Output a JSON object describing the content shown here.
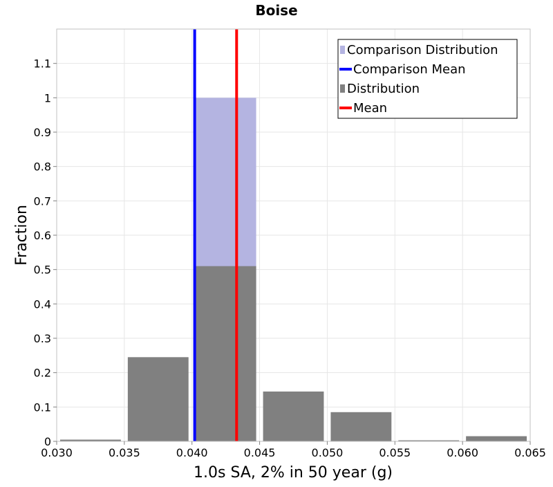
{
  "chart_data": {
    "type": "bar",
    "title": "Boise",
    "xlabel": "1.0s SA, 2% in 50 year (g)",
    "ylabel": "Fraction",
    "xlim": [
      0.03,
      0.065
    ],
    "ylim": [
      0,
      1.2
    ],
    "x_ticks": [
      "0.030",
      "0.035",
      "0.040",
      "0.045",
      "0.050",
      "0.055",
      "0.060",
      "0.065"
    ],
    "y_ticks": [
      "0",
      "0.1",
      "0.2",
      "0.3",
      "0.4",
      "0.5",
      "0.6",
      "0.7",
      "0.8",
      "0.9",
      "1",
      "1.1"
    ],
    "grid": true,
    "legend_position": "top-right",
    "bin_width": 0.005,
    "series": [
      {
        "name": "Comparison Distribution",
        "kind": "histogram",
        "color": "#b4b4e1",
        "bins": [
          {
            "x0": 0.04,
            "x1": 0.045,
            "value": 1.0
          }
        ]
      },
      {
        "name": "Comparison Mean",
        "kind": "vline",
        "color": "#0000ff",
        "x": 0.0402
      },
      {
        "name": "Distribution",
        "kind": "histogram",
        "color": "#808080",
        "bins": [
          {
            "x0": 0.03,
            "x1": 0.035,
            "value": 0.005
          },
          {
            "x0": 0.035,
            "x1": 0.04,
            "value": 0.245
          },
          {
            "x0": 0.04,
            "x1": 0.045,
            "value": 0.51
          },
          {
            "x0": 0.045,
            "x1": 0.05,
            "value": 0.145
          },
          {
            "x0": 0.05,
            "x1": 0.055,
            "value": 0.085
          },
          {
            "x0": 0.055,
            "x1": 0.06,
            "value": 0.003
          },
          {
            "x0": 0.06,
            "x1": 0.065,
            "value": 0.015
          }
        ]
      },
      {
        "name": "Mean",
        "kind": "vline",
        "color": "#ff0000",
        "x": 0.0433
      }
    ]
  }
}
